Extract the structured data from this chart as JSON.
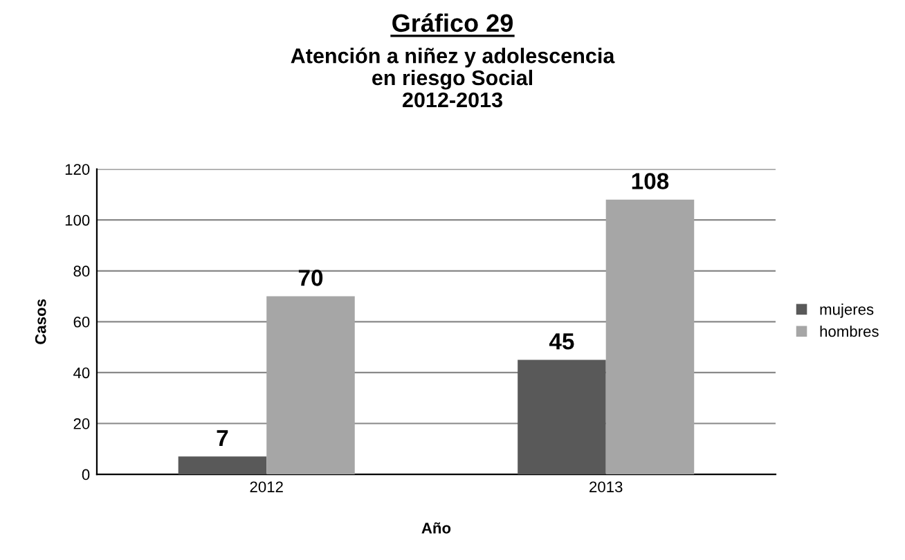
{
  "chart_data": {
    "type": "bar",
    "title": "Gráfico 29",
    "subtitle": "Atención a niñez y adolescencia\nen riesgo Social\n2012-2013",
    "xlabel": "Año",
    "ylabel": "Casos",
    "categories": [
      "2012",
      "2013"
    ],
    "series": [
      {
        "name": "mujeres",
        "color": "#595959",
        "values": [
          7,
          45
        ]
      },
      {
        "name": "hombres",
        "color": "#a6a6a6",
        "values": [
          70,
          108
        ]
      }
    ],
    "ylim": [
      0,
      120
    ],
    "yticks": [
      0,
      20,
      40,
      60,
      80,
      100,
      120
    ],
    "grid": "y",
    "legend": "right",
    "data_labels": true
  }
}
